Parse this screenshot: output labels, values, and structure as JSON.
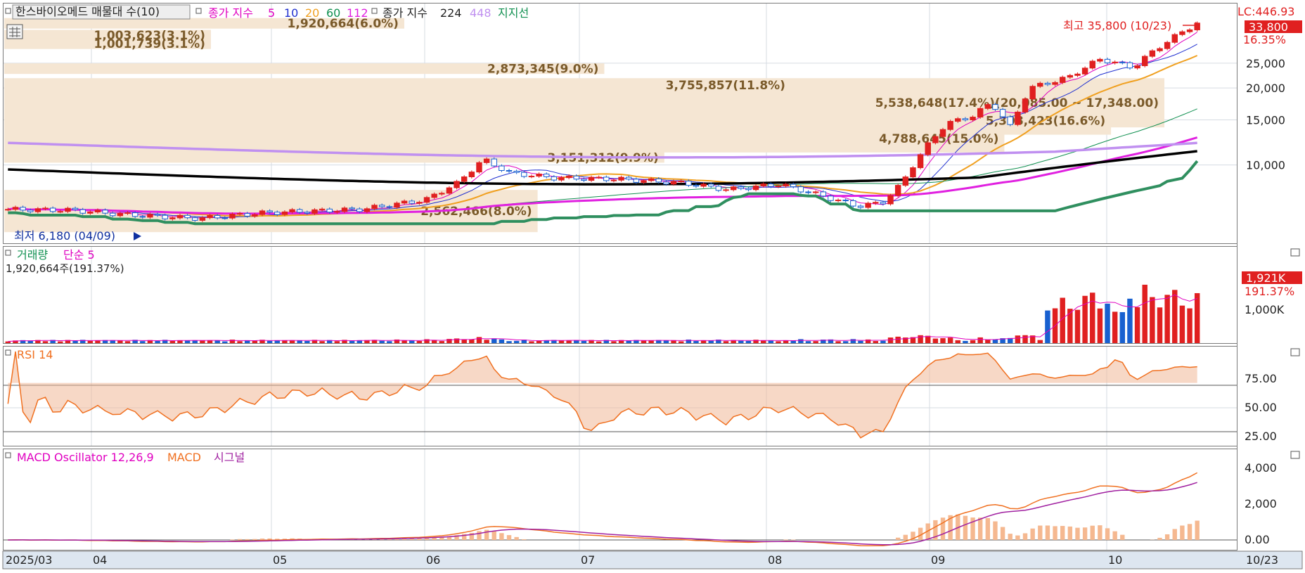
{
  "header": {
    "title": "한스바이오메드 매물대 수(10)",
    "legend_label": "종가 지수",
    "ma_periods": [
      {
        "label": "5",
        "color": "#e000c0"
      },
      {
        "label": "10",
        "color": "#2030d0"
      },
      {
        "label": "20",
        "color": "#f0a020"
      },
      {
        "label": "60",
        "color": "#109050"
      },
      {
        "label": "112",
        "color": "#e020e0"
      }
    ],
    "legend_label_2": "종가 지수",
    "ma_periods_2": [
      {
        "label": "224",
        "color": "#000000"
      },
      {
        "label": "448",
        "color": "#c090f0"
      }
    ],
    "support_line_label": "지지선"
  },
  "annotations": {
    "high": "최고 35,800 (10/23)",
    "low": "최저 6,180 (04/09)"
  },
  "price_axis": {
    "lc_label": "LC:446.93",
    "current_price": "33,800",
    "change_pct": "16.35%",
    "ticks": [
      "25,000",
      "20,000",
      "15,000",
      "10,000"
    ]
  },
  "volume_panel": {
    "title": "거래량",
    "ma_label": "단순 5",
    "value_text": "1,920,664주(191.37%)",
    "axis_badge": "1,921K",
    "axis_pct": "191.37%",
    "ticks": [
      "1,000K"
    ]
  },
  "rsi_panel": {
    "title": "RSI 14",
    "ticks": [
      "75.00",
      "50.00",
      "25.00"
    ]
  },
  "macd_panel": {
    "title": "MACD Oscillator 12,26,9",
    "macd_label": "MACD",
    "signal_label": "시그널",
    "ticks": [
      "4,000",
      "2,000",
      "0.00"
    ]
  },
  "x_axis": {
    "labels": [
      "2025/03",
      "04",
      "05",
      "06",
      "07",
      "08",
      "09",
      "10"
    ],
    "end_label": "10/23"
  },
  "colors": {
    "up": "#e02020",
    "down": "#1860d0",
    "volume_profile": "#f5e6d3",
    "rsi_fill": "#f0b898",
    "rsi_line": "#f07020"
  },
  "chart_data": {
    "type": "candlestick",
    "ylim": [
      5000,
      37000
    ],
    "price_scale": "log",
    "volume_profile": [
      {
        "price": 35800,
        "label": "1,920,664(6.0%)",
        "pct": 6.0
      },
      {
        "price": 32200,
        "label": "1,003,623(3.1%)",
        "pct": 3.1
      },
      {
        "price": 29800,
        "label": "1,001,739(3.1%)",
        "pct": 3.1
      },
      {
        "price": 23800,
        "label": "2,873,345(9.0%)",
        "pct": 9.0
      },
      {
        "price": 20500,
        "label": "3,755,857(11.8%)",
        "pct": 11.8
      },
      {
        "price": 17500,
        "label": "5,538,648(17.4%)(20,085.00 ~ 17,348.00)",
        "pct": 17.4
      },
      {
        "price": 14900,
        "label": "5,308,423(16.6%)",
        "pct": 16.6
      },
      {
        "price": 12700,
        "label": "4,788,645(15.0%)",
        "pct": 15.0
      },
      {
        "price": 10700,
        "label": "3,151,312(9.9%)",
        "pct": 9.9
      },
      {
        "price": 6600,
        "label": "2,562,466(8.0%)",
        "pct": 8.0
      }
    ]
  }
}
